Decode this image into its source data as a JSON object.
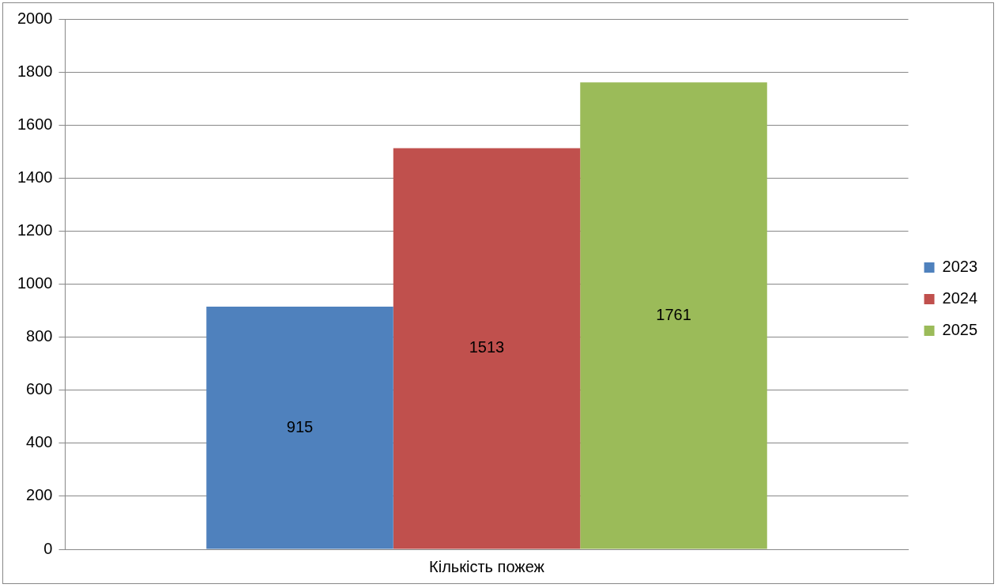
{
  "chart_data": {
    "type": "bar",
    "categories": [
      "Кількість пожеж"
    ],
    "series": [
      {
        "name": "2023",
        "color": "#4f81bd",
        "values": [
          915
        ]
      },
      {
        "name": "2024",
        "color": "#c0504d",
        "values": [
          1513
        ]
      },
      {
        "name": "2025",
        "color": "#9bbb59",
        "values": [
          1761
        ]
      }
    ],
    "ylim": [
      0,
      2000
    ],
    "yticks": [
      0,
      200,
      400,
      600,
      800,
      1000,
      1200,
      1400,
      1600,
      1800,
      2000
    ],
    "grid": "y",
    "legend": "right",
    "data_labels": true
  }
}
